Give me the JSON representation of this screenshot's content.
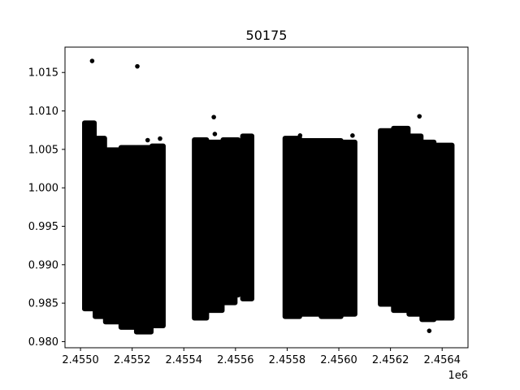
{
  "chart_data": {
    "type": "scatter",
    "title": "50175",
    "xlabel": "",
    "ylabel": "",
    "x_offset_label": "1e6",
    "xlim": [
      2454890,
      2456450
    ],
    "ylim": [
      0.9792,
      1.0183
    ],
    "x_ticks": [
      2454950,
      2455150,
      2455350,
      2455550,
      2455750,
      2455950,
      2456150,
      2456350
    ],
    "x_tick_labels": [
      "2.4550",
      "2.4552",
      "2.4554",
      "2.4556",
      "2.4558",
      "2.4560",
      "2.4562",
      "2.4564"
    ],
    "y_ticks": [
      0.98,
      0.985,
      0.99,
      0.995,
      1.0,
      1.005,
      1.01,
      1.015
    ],
    "y_tick_labels": [
      "0.980",
      "0.985",
      "0.990",
      "0.995",
      "1.000",
      "1.005",
      "1.010",
      "1.015"
    ],
    "marker_color": "#000000",
    "grid": false,
    "segments": [
      {
        "x": [
          2454964,
          2455005
        ],
        "y": [
          0.9842,
          1.0085
        ]
      },
      {
        "x": [
          2455005,
          2455045
        ],
        "y": [
          0.9832,
          1.0065
        ]
      },
      {
        "x": [
          2455045,
          2455105
        ],
        "y": [
          0.9825,
          1.005
        ]
      },
      {
        "x": [
          2455105,
          2455165
        ],
        "y": [
          0.9818,
          1.0053
        ]
      },
      {
        "x": [
          2455165,
          2455225
        ],
        "y": [
          0.9812,
          1.0053
        ]
      },
      {
        "x": [
          2455225,
          2455272
        ],
        "y": [
          0.982,
          1.0055
        ]
      },
      {
        "x": [
          2455389,
          2455440
        ],
        "y": [
          0.983,
          1.0063
        ]
      },
      {
        "x": [
          2455440,
          2455500
        ],
        "y": [
          0.984,
          1.006
        ]
      },
      {
        "x": [
          2455500,
          2455550
        ],
        "y": [
          0.985,
          1.0063
        ]
      },
      {
        "x": [
          2455550,
          2455562
        ],
        "y": [
          0.986,
          1.0063
        ]
      },
      {
        "x": [
          2455576,
          2455615
        ],
        "y": [
          0.9855,
          1.0068
        ]
      },
      {
        "x": [
          2455740,
          2455800
        ],
        "y": [
          0.9832,
          1.0065
        ]
      },
      {
        "x": [
          2455800,
          2455880
        ],
        "y": [
          0.9835,
          1.0062
        ]
      },
      {
        "x": [
          2455880,
          2455960
        ],
        "y": [
          0.9832,
          1.0062
        ]
      },
      {
        "x": [
          2455960,
          2456014
        ],
        "y": [
          0.9835,
          1.006
        ]
      },
      {
        "x": [
          2456109,
          2456160
        ],
        "y": [
          0.9848,
          1.0075
        ]
      },
      {
        "x": [
          2456160,
          2456220
        ],
        "y": [
          0.984,
          1.0078
        ]
      },
      {
        "x": [
          2456220,
          2456270
        ],
        "y": [
          0.9835,
          1.0068
        ]
      },
      {
        "x": [
          2456270,
          2456320
        ],
        "y": [
          0.9828,
          1.006
        ]
      },
      {
        "x": [
          2456320,
          2456390
        ],
        "y": [
          0.983,
          1.0056
        ]
      }
    ],
    "outliers": [
      {
        "x": 2454995,
        "y": 1.0165
      },
      {
        "x": 2455170,
        "y": 1.0158
      },
      {
        "x": 2455210,
        "y": 1.0062
      },
      {
        "x": 2455258,
        "y": 1.0064
      },
      {
        "x": 2455466,
        "y": 1.0092
      },
      {
        "x": 2455470,
        "y": 1.007
      },
      {
        "x": 2456003,
        "y": 1.0068
      },
      {
        "x": 2456262,
        "y": 1.0093
      },
      {
        "x": 2456300,
        "y": 0.9814
      },
      {
        "x": 2455800,
        "y": 1.0068
      }
    ]
  }
}
